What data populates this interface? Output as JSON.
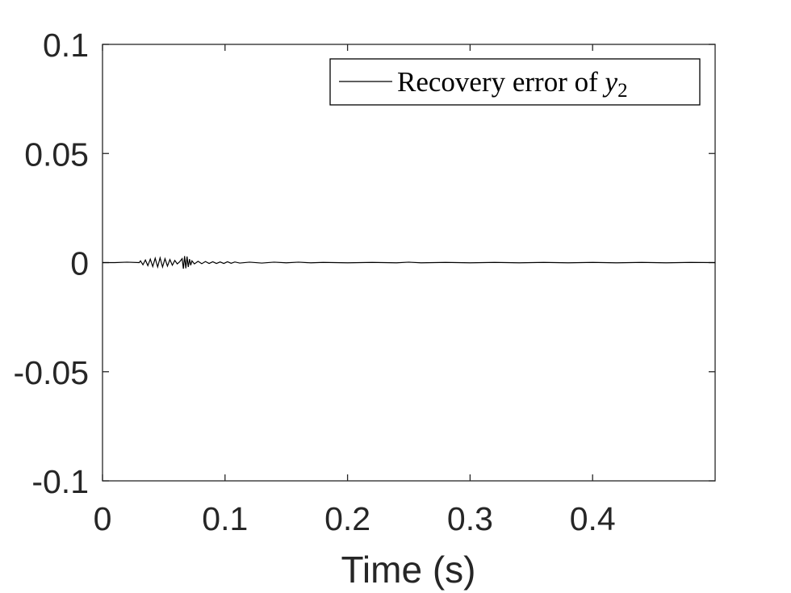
{
  "chart_data": {
    "type": "line",
    "xlabel": "Time (s)",
    "ylabel": "",
    "xlim": [
      0,
      0.5
    ],
    "ylim": [
      -0.1,
      0.1
    ],
    "x_ticks": [
      0,
      0.1,
      0.2,
      0.3,
      0.4
    ],
    "x_tick_labels": [
      "0",
      "0.1",
      "0.2",
      "0.3",
      "0.4"
    ],
    "y_ticks": [
      0.1,
      0.05,
      0,
      -0.05,
      -0.1
    ],
    "y_tick_labels": [
      "0.1",
      "0.05",
      "0",
      "-0.05",
      "-0.1"
    ],
    "grid": false,
    "legend": {
      "position": "top-right",
      "text": "Recovery error of ",
      "symbol": "y",
      "subscript": "2"
    },
    "series": [
      {
        "name": "Recovery error of y2",
        "color": "#000000",
        "x": [
          0.0,
          0.01,
          0.02,
          0.03,
          0.031,
          0.033,
          0.035,
          0.037,
          0.039,
          0.041,
          0.043,
          0.045,
          0.047,
          0.049,
          0.051,
          0.053,
          0.055,
          0.057,
          0.059,
          0.061,
          0.063,
          0.065,
          0.066,
          0.067,
          0.068,
          0.069,
          0.07,
          0.071,
          0.072,
          0.073,
          0.075,
          0.078,
          0.081,
          0.084,
          0.087,
          0.09,
          0.093,
          0.096,
          0.099,
          0.102,
          0.105,
          0.108,
          0.112,
          0.12,
          0.13,
          0.14,
          0.15,
          0.16,
          0.17,
          0.18,
          0.2,
          0.22,
          0.24,
          0.25,
          0.26,
          0.28,
          0.3,
          0.32,
          0.34,
          0.36,
          0.38,
          0.4,
          0.42,
          0.44,
          0.46,
          0.48,
          0.5
        ],
        "y": [
          0,
          0,
          0.0002,
          0,
          0.0008,
          -0.001,
          0.0012,
          -0.0014,
          0.0016,
          -0.0018,
          0.002,
          -0.002,
          0.0022,
          -0.002,
          0.0018,
          -0.0016,
          0.0014,
          -0.0012,
          0.001,
          -0.0006,
          0.0004,
          0.0018,
          -0.0028,
          0.003,
          -0.0026,
          0.0028,
          -0.002,
          0.0016,
          -0.0012,
          0.0008,
          -0.0006,
          0.0006,
          -0.0005,
          0.0005,
          -0.0004,
          0.0004,
          -0.0004,
          0.0003,
          -0.0004,
          0.0004,
          -0.0003,
          0.0003,
          -0.0002,
          0.0002,
          -0.0002,
          0.0002,
          -0.0001,
          0.0002,
          -0.0001,
          0.0001,
          -0.0001,
          0.0001,
          -0.0001,
          0.0002,
          -0.0001,
          0.0001,
          -0.0001,
          0.0001,
          -0.0001,
          0.0001,
          -0.0001,
          0.0001,
          -0.0001,
          0.0001,
          -0.0001,
          0.0001,
          0
        ]
      }
    ]
  }
}
